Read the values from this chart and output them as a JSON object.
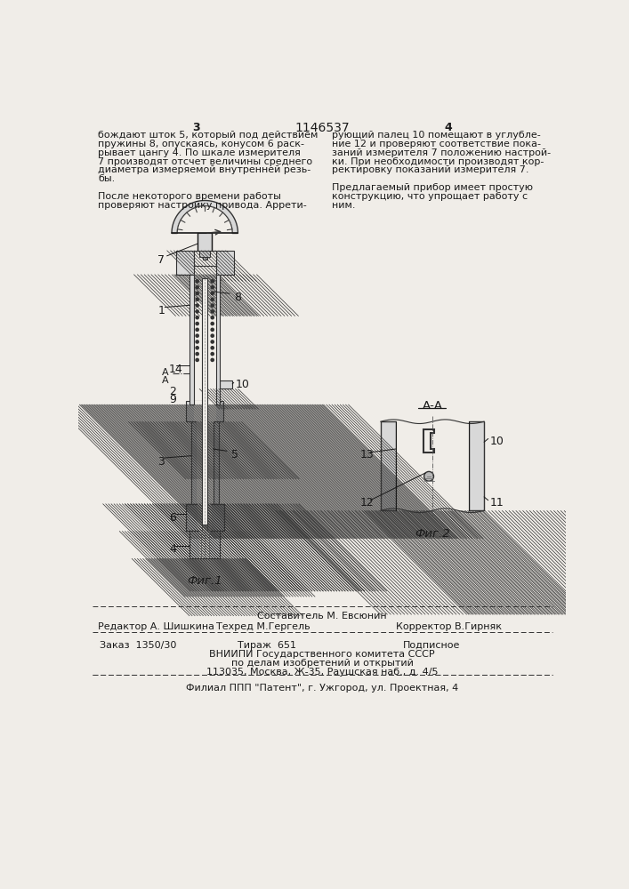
{
  "bg_color": "#f0ede8",
  "text_color": "#1a1a1a",
  "page_num_left": "3",
  "page_num_center": "1146537",
  "page_num_right": "4",
  "text_left": [
    "бождают шток 5, который под действием",
    "пружины 8, опускаясь, конусом 6 раск-",
    "рывает цангу 4. По шкале измерителя",
    "7 производят отсчет величины среднего",
    "диаметра измеряемой внутренней резь-",
    "бы.",
    "",
    "После некоторого времени работы",
    "проверяют настройку привода. Аррети-"
  ],
  "text_right": [
    "рующий палец 10 помещают в углубле-",
    "ние 12 и проверяют соответствие пока-",
    "заний измерителя 7 положению настрой-",
    "ки. При необходимости производят кор-",
    "ректировку показаний измерителя 7.",
    "",
    "Предлагаемый прибор имеет простую",
    "конструкцию, что упрощает работу с",
    "ним."
  ],
  "fig1_caption": "Фиг.1",
  "fig2_caption": "Фиг.2",
  "aa_label": "А-А",
  "compiler_line": "Составитель М. Евсюнин",
  "editor_label": "Редактор А. Шишкина",
  "techred_label": "Техред М.Гергель",
  "corrector_label": "Корректор В.Гирняк",
  "order_line": "Заказ  1350/30",
  "tirazh_line": "Тираж  651",
  "podpisnoe_line": "Подписное",
  "vniip1": "ВНИИПИ Государственного комитета СССР",
  "vniip2": "по делам изобретений и открытий",
  "vniip3": "113035, Москва, Ж-35, Раушская наб., д. 4/5",
  "filial": "Филиал ППП \"Патент\", г. Ужгород, ул. Проектная, 4"
}
